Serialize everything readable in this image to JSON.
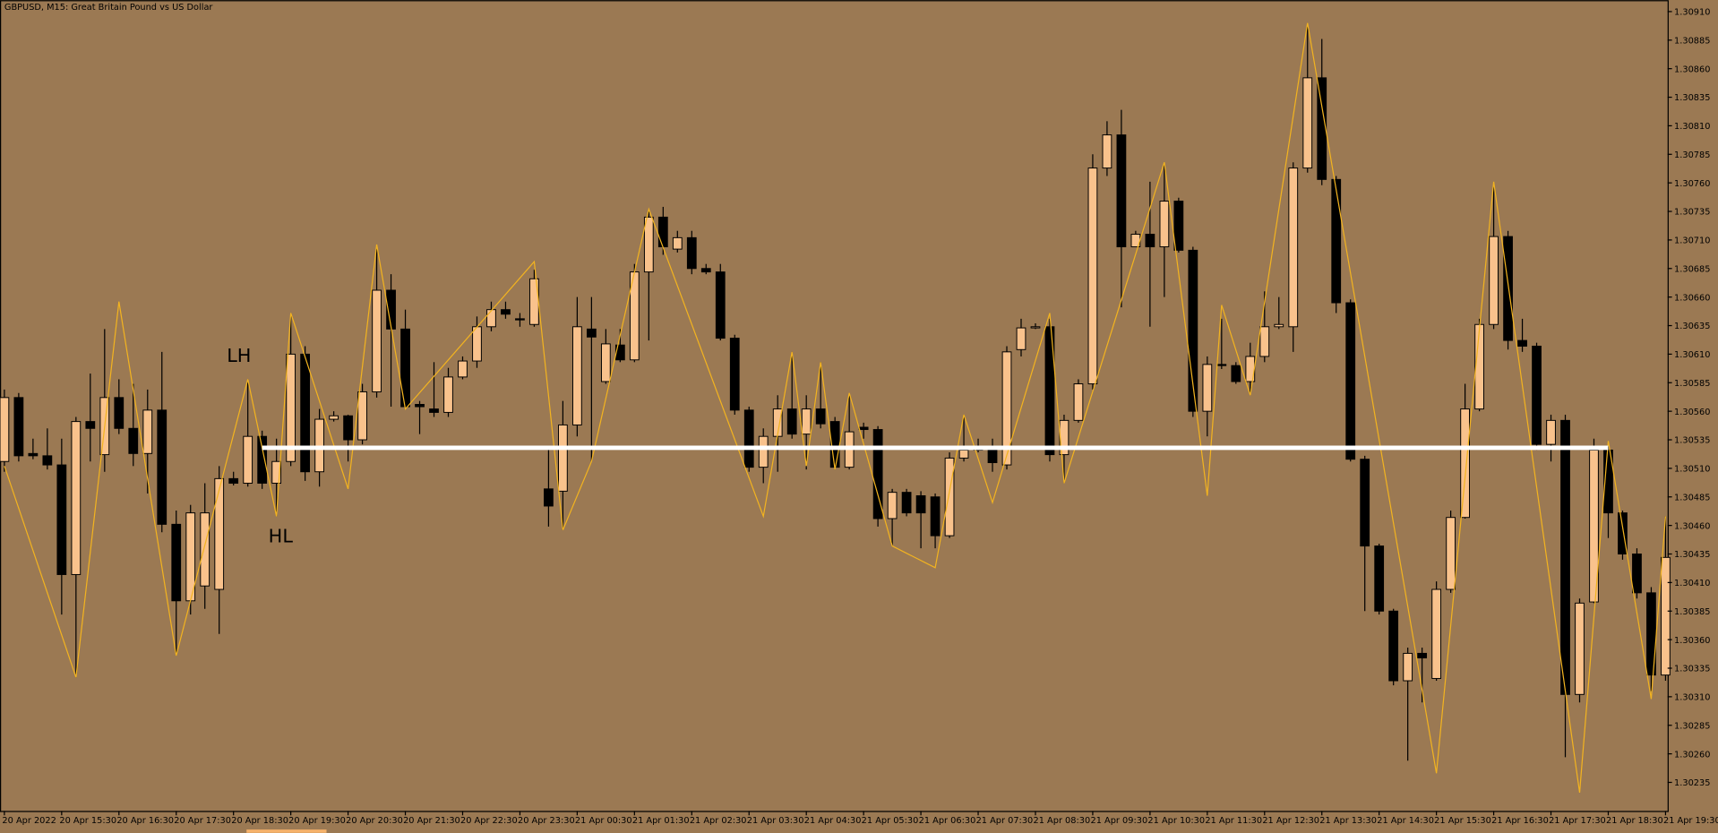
{
  "chart_data": {
    "type": "candlestick",
    "title": "GBPUSD, M15:  Great Britain Pound vs US Dollar",
    "annotations": [
      "LH",
      "HL"
    ],
    "categories": [
      "20 Apr 2022",
      null,
      null,
      null,
      "20 Apr 15:30",
      null,
      null,
      null,
      "20 Apr 16:30",
      null,
      null,
      null,
      "20 Apr 17:30",
      null,
      null,
      null,
      "20 Apr 18:30",
      null,
      null,
      null,
      "20 Apr 19:30",
      null,
      null,
      null,
      "20 Apr 20:30",
      null,
      null,
      null,
      "20 Apr 21:30",
      null,
      null,
      null,
      "20 Apr 22:30",
      null,
      null,
      null,
      "20 Apr 23:30",
      null,
      null,
      null,
      "21 Apr 00:30",
      null,
      null,
      null,
      "21 Apr 01:30",
      null,
      null,
      null,
      "21 Apr 02:30",
      null,
      null,
      null,
      "21 Apr 03:30",
      null,
      null,
      null,
      "21 Apr 04:30",
      null,
      null,
      null,
      "21 Apr 05:30",
      null,
      null,
      null,
      "21 Apr 06:30",
      null,
      null,
      null,
      "21 Apr 07:30",
      null,
      null,
      null,
      "21 Apr 08:30",
      null,
      null,
      null,
      "21 Apr 09:30",
      null,
      null,
      null,
      "21 Apr 10:30",
      null,
      null,
      null,
      "21 Apr 11:30",
      null,
      null,
      null,
      "21 Apr 12:30",
      null,
      null,
      null,
      "21 Apr 13:30",
      null,
      null,
      null,
      "21 Apr 14:30",
      null,
      null,
      null,
      "21 Apr 15:30",
      null,
      null,
      null,
      "21 Apr 16:30",
      null,
      null,
      null,
      "21 Apr 17:30",
      null,
      null,
      null,
      "21 Apr 18:30",
      null,
      null,
      null,
      "21 Apr 19:30"
    ],
    "open": [
      1.30516,
      1.30572,
      1.30523,
      1.30521,
      1.30513,
      1.30417,
      1.30551,
      1.30522,
      1.30572,
      1.30545,
      1.30523,
      1.30561,
      1.30461,
      1.30394,
      1.30407,
      1.30404,
      1.30501,
      1.30497,
      1.30538,
      1.30497,
      1.30516,
      1.3061,
      1.30507,
      1.30553,
      1.30556,
      1.30535,
      1.30577,
      1.30666,
      1.30632,
      1.30566,
      1.30562,
      1.30559,
      1.3059,
      1.30604,
      1.30634,
      1.30649,
      1.30641,
      1.30636,
      1.30492,
      1.3049,
      1.30548,
      1.30632,
      1.30586,
      1.30618,
      1.30605,
      1.30682,
      1.3073,
      1.30702,
      1.30712,
      1.30685,
      1.30682,
      1.30624,
      1.30561,
      1.30511,
      1.30538,
      1.30562,
      1.3054,
      1.30562,
      1.30551,
      1.30511,
      1.30546,
      1.30544,
      1.30466,
      1.30489,
      1.30486,
      1.30485,
      1.30451,
      1.30519,
      1.30526,
      1.30528,
      1.30513,
      1.30614,
      1.30633,
      1.30634,
      1.30522,
      1.30552,
      1.30584,
      1.30773,
      1.30802,
      1.30704,
      1.30715,
      1.30704,
      1.30744,
      1.30701,
      1.3056,
      1.30601,
      1.306,
      1.30586,
      1.30608,
      1.30634,
      1.30634,
      1.30773,
      1.30852,
      1.30763,
      1.30655,
      1.30518,
      1.30442,
      1.30385,
      1.30324,
      1.30348,
      1.30326,
      1.30404,
      1.30467,
      1.30562,
      1.30636,
      1.30713,
      1.30622,
      1.30617,
      1.30531,
      1.30552,
      1.30312,
      1.30393,
      1.30526,
      1.30471,
      1.30435,
      1.30401,
      1.30329
    ],
    "high": [
      1.30579,
      1.30576,
      1.30536,
      1.30545,
      1.30536,
      1.30555,
      1.30593,
      1.30632,
      1.30588,
      1.30584,
      1.30579,
      1.30612,
      1.30473,
      1.30478,
      1.30497,
      1.30512,
      1.30507,
      1.30588,
      1.30543,
      1.30536,
      1.30646,
      1.30617,
      1.30562,
      1.3056,
      1.30557,
      1.30584,
      1.30704,
      1.3068,
      1.30649,
      1.30569,
      1.30603,
      1.30598,
      1.30608,
      1.30643,
      1.30656,
      1.30656,
      1.30646,
      1.30684,
      1.30526,
      1.30569,
      1.3066,
      1.3066,
      1.30632,
      1.30632,
      1.30689,
      1.30737,
      1.30739,
      1.30718,
      1.30718,
      1.30689,
      1.30689,
      1.30627,
      1.30564,
      1.30545,
      1.30574,
      1.30612,
      1.30574,
      1.30603,
      1.30555,
      1.30574,
      1.3055,
      1.30547,
      1.30492,
      1.30492,
      1.3049,
      1.30488,
      1.30524,
      1.30557,
      1.30536,
      1.30536,
      1.30617,
      1.30641,
      1.30637,
      1.30641,
      1.30557,
      1.30588,
      1.30785,
      1.30814,
      1.30824,
      1.30718,
      1.30761,
      1.30776,
      1.30747,
      1.30704,
      1.30608,
      1.30641,
      1.30603,
      1.3062,
      1.30665,
      1.3066,
      1.30778,
      1.30898,
      1.30886,
      1.30766,
      1.30658,
      1.30521,
      1.30444,
      1.30387,
      1.30353,
      1.30353,
      1.30411,
      1.30473,
      1.30584,
      1.30641,
      1.30758,
      1.30718,
      1.30641,
      1.3062,
      1.30557,
      1.30557,
      1.30396,
      1.30536,
      1.30531,
      1.30473,
      1.3044,
      1.30406,
      1.30468
    ],
    "low": [
      1.30507,
      1.30516,
      1.30518,
      1.30509,
      1.30382,
      1.30327,
      1.30516,
      1.30507,
      1.3054,
      1.30512,
      1.30488,
      1.30454,
      1.30346,
      1.30382,
      1.30387,
      1.30365,
      1.30495,
      1.30494,
      1.30492,
      1.30468,
      1.30512,
      1.30499,
      1.30494,
      1.30551,
      1.30516,
      1.30531,
      1.30572,
      1.30564,
      1.30562,
      1.3054,
      1.30555,
      1.30555,
      1.30588,
      1.30598,
      1.3063,
      1.30641,
      1.30634,
      1.30634,
      1.30459,
      1.30456,
      1.30538,
      1.30516,
      1.30584,
      1.30603,
      1.30603,
      1.30622,
      1.30697,
      1.30699,
      1.3068,
      1.3068,
      1.30622,
      1.30557,
      1.30507,
      1.30497,
      1.30507,
      1.30536,
      1.30509,
      1.30545,
      1.30509,
      1.30509,
      1.30536,
      1.30459,
      1.30442,
      1.30468,
      1.3044,
      1.3044,
      1.30449,
      1.30516,
      1.30524,
      1.30507,
      1.30509,
      1.30608,
      1.30632,
      1.30516,
      1.30497,
      1.3055,
      1.30579,
      1.30766,
      1.30651,
      1.30704,
      1.30634,
      1.3066,
      1.30699,
      1.30555,
      1.30538,
      1.30597,
      1.30584,
      1.30574,
      1.30603,
      1.30632,
      1.30612,
      1.30769,
      1.30758,
      1.30646,
      1.30516,
      1.30385,
      1.30382,
      1.3032,
      1.30254,
      1.30305,
      1.30324,
      1.30401,
      1.30466,
      1.3056,
      1.30632,
      1.30614,
      1.30612,
      1.30526,
      1.30516,
      1.30257,
      1.30305,
      1.30392,
      1.30449,
      1.3043,
      1.30396,
      1.30315,
      1.30324
    ],
    "close": [
      1.30572,
      1.30521,
      1.30521,
      1.30513,
      1.30417,
      1.30551,
      1.30545,
      1.30572,
      1.30545,
      1.30523,
      1.30561,
      1.30461,
      1.30394,
      1.30471,
      1.30471,
      1.30501,
      1.30497,
      1.30538,
      1.30497,
      1.30516,
      1.3061,
      1.30507,
      1.30553,
      1.30556,
      1.30535,
      1.30577,
      1.30666,
      1.30632,
      1.30564,
      1.30564,
      1.30559,
      1.3059,
      1.30604,
      1.30634,
      1.30649,
      1.30645,
      1.3064,
      1.30676,
      1.30477,
      1.30548,
      1.30634,
      1.30625,
      1.30619,
      1.30605,
      1.30682,
      1.3073,
      1.30704,
      1.30712,
      1.30685,
      1.30682,
      1.30624,
      1.30561,
      1.30511,
      1.30538,
      1.30562,
      1.3054,
      1.30562,
      1.30549,
      1.30511,
      1.30542,
      1.30544,
      1.30466,
      1.30489,
      1.30471,
      1.30471,
      1.30451,
      1.30519,
      1.30526,
      1.30528,
      1.30515,
      1.30612,
      1.30633,
      1.30634,
      1.30522,
      1.30552,
      1.30584,
      1.30773,
      1.30802,
      1.30704,
      1.30715,
      1.30704,
      1.30744,
      1.30701,
      1.3056,
      1.30601,
      1.306,
      1.30586,
      1.30608,
      1.30634,
      1.30636,
      1.30773,
      1.30852,
      1.30763,
      1.30655,
      1.30518,
      1.30442,
      1.30385,
      1.30324,
      1.30348,
      1.30344,
      1.30404,
      1.30467,
      1.30562,
      1.30636,
      1.30713,
      1.30622,
      1.30617,
      1.30531,
      1.30552,
      1.30312,
      1.30392,
      1.30526,
      1.30471,
      1.30435,
      1.30401,
      1.30329,
      1.30432
    ],
    "up_color": "#f9c28c",
    "down_color": "#000000",
    "ylim": [
      1.3021,
      1.3092
    ],
    "yticks": [
      {
        "value": 1.3091,
        "label": "1.30910"
      },
      {
        "value": 1.30885,
        "label": "1.30885"
      },
      {
        "value": 1.3086,
        "label": "1.30860"
      },
      {
        "value": 1.30835,
        "label": "1.30835"
      },
      {
        "value": 1.3081,
        "label": "1.30810"
      },
      {
        "value": 1.30785,
        "label": "1.30785"
      },
      {
        "value": 1.3076,
        "label": "1.30760"
      },
      {
        "value": 1.30735,
        "label": "1.30735"
      },
      {
        "value": 1.3071,
        "label": "1.30710"
      },
      {
        "value": 1.30685,
        "label": "1.30685"
      },
      {
        "value": 1.3066,
        "label": "1.30660"
      },
      {
        "value": 1.30635,
        "label": "1.30635"
      },
      {
        "value": 1.3061,
        "label": "1.30610"
      },
      {
        "value": 1.30585,
        "label": "1.30585"
      },
      {
        "value": 1.3056,
        "label": "1.30560"
      },
      {
        "value": 1.30535,
        "label": "1.30535"
      },
      {
        "value": 1.3051,
        "label": "1.30510"
      },
      {
        "value": 1.30485,
        "label": "1.30485"
      },
      {
        "value": 1.3046,
        "label": "1.30460"
      },
      {
        "value": 1.30435,
        "label": "1.30435"
      },
      {
        "value": 1.3041,
        "label": "1.30410"
      },
      {
        "value": 1.30385,
        "label": "1.30385"
      },
      {
        "value": 1.3036,
        "label": "1.30360"
      },
      {
        "value": 1.30335,
        "label": "1.30335"
      },
      {
        "value": 1.3031,
        "label": "1.30310"
      },
      {
        "value": 1.30285,
        "label": "1.30285"
      },
      {
        "value": 1.3026,
        "label": "1.30260"
      },
      {
        "value": 1.30235,
        "label": "1.30235"
      }
    ],
    "zigzag": {
      "color": "#f2b320",
      "x": [
        0,
        5,
        8,
        12,
        17,
        19,
        20,
        24,
        26,
        28,
        37,
        39,
        41,
        45,
        53,
        55,
        56,
        57,
        58,
        59,
        62,
        65,
        67,
        69,
        73,
        74,
        81,
        84,
        85,
        87,
        91,
        100,
        104,
        110,
        112,
        115,
        116
      ],
      "values": [
        1.30512,
        1.30327,
        1.30656,
        1.30346,
        1.30588,
        1.30468,
        1.30646,
        1.30492,
        1.30706,
        1.30562,
        1.30691,
        1.30456,
        1.30516,
        1.30737,
        1.30468,
        1.30612,
        1.30512,
        1.30603,
        1.30509,
        1.30576,
        1.30442,
        1.30423,
        1.30557,
        1.3048,
        1.30646,
        1.30497,
        1.30778,
        1.30486,
        1.30653,
        1.30574,
        1.309,
        1.30243,
        1.30761,
        1.30226,
        1.30534,
        1.30308,
        1.30468
      ]
    },
    "level": {
      "color": "#ffffff",
      "value": 1.30528,
      "x": [
        18,
        112
      ]
    }
  }
}
